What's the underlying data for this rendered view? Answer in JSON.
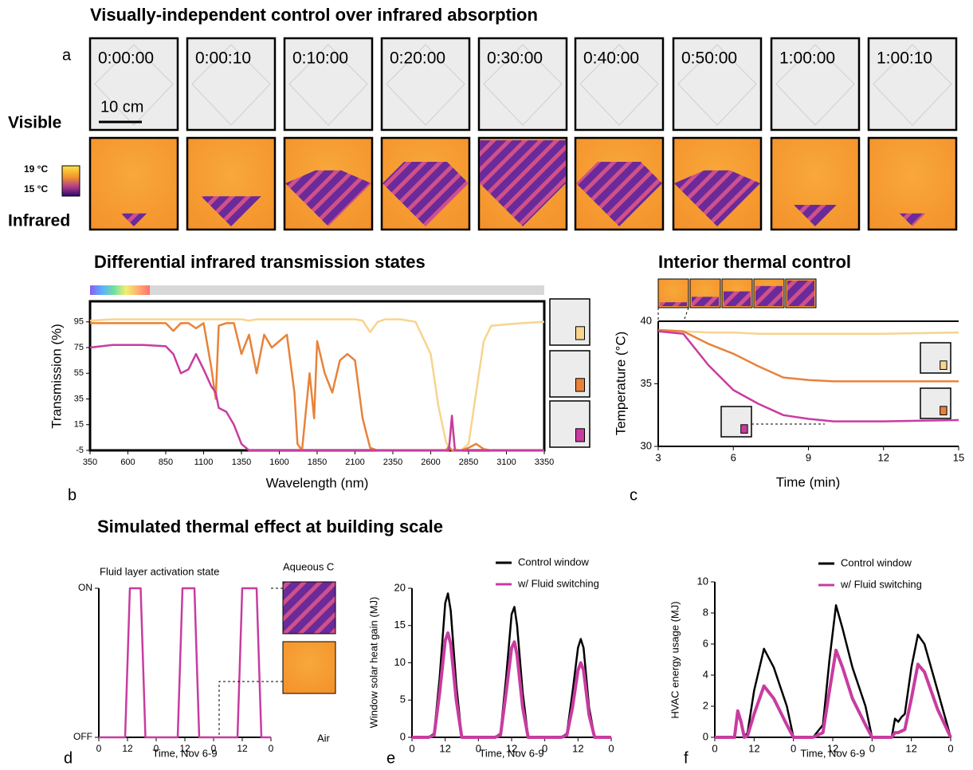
{
  "panel_a": {
    "title": "Visually-independent control over infrared absorption",
    "label": "a",
    "timestamps": [
      "0:00:00",
      "0:00:10",
      "0:10:00",
      "0:20:00",
      "0:30:00",
      "0:40:00",
      "0:50:00",
      "1:00:00",
      "1:00:10"
    ],
    "scale_bar": "10 cm",
    "row_labels": [
      "Visible",
      "Infrared"
    ],
    "colorbar_labels": [
      "19 °C",
      "15 °C"
    ]
  },
  "section_title": "Simulated thermal effect at building scale",
  "chart_data": [
    {
      "type": "line",
      "panel_label": "b",
      "title": "Differential infrared transmission states",
      "x_label": "Wavelength (nm)",
      "y_label": "Transmission (%)",
      "xlim": [
        350,
        3350
      ],
      "xticks": [
        350,
        600,
        850,
        1100,
        1350,
        1600,
        1850,
        2100,
        2350,
        2600,
        2850,
        3100,
        3350
      ],
      "ylim": [
        -5,
        111
      ],
      "yticks": [
        -5,
        15,
        35,
        55,
        75,
        95
      ],
      "x": [
        350,
        500,
        700,
        850,
        900,
        950,
        1000,
        1050,
        1100,
        1150,
        1180,
        1200,
        1250,
        1300,
        1350,
        1400,
        1450,
        1500,
        1550,
        1600,
        1650,
        1700,
        1720,
        1750,
        1800,
        1830,
        1850,
        1900,
        1950,
        2000,
        2050,
        2100,
        2150,
        2200,
        2250,
        2300,
        2400,
        2500,
        2600,
        2650,
        2700,
        2720,
        2740,
        2760,
        2800,
        2850,
        2900,
        2950,
        3000,
        3100,
        3200,
        3350
      ],
      "series": [
        {
          "color": "#f8d48e",
          "values": [
            96,
            97,
            97,
            97,
            97,
            97,
            97,
            97,
            97,
            97,
            97,
            97,
            97,
            97,
            97,
            96,
            97,
            97,
            97,
            97,
            97,
            97,
            97,
            97,
            97,
            97,
            97,
            97,
            97,
            97,
            97,
            97,
            96,
            87,
            95,
            97,
            97,
            95,
            70,
            30,
            2,
            -3,
            15,
            -4,
            -5,
            0,
            40,
            80,
            92,
            93,
            94,
            95
          ]
        },
        {
          "color": "#e8823a",
          "values": [
            94,
            94,
            94,
            94,
            88,
            94,
            94,
            90,
            94,
            60,
            35,
            92,
            94,
            94,
            70,
            85,
            55,
            85,
            75,
            80,
            85,
            40,
            0,
            -5,
            55,
            20,
            80,
            55,
            40,
            65,
            70,
            65,
            20,
            -3,
            -5,
            -5,
            -5,
            -5,
            -5,
            -5,
            -5,
            -2,
            -5,
            -5,
            -5,
            -3,
            0,
            -4,
            -5,
            -5,
            -5,
            -5
          ]
        },
        {
          "color": "#c83ca0",
          "values": [
            75,
            77,
            77,
            76,
            70,
            55,
            58,
            70,
            58,
            45,
            40,
            28,
            25,
            15,
            0,
            -5,
            -5,
            -5,
            -5,
            -5,
            -5,
            -5,
            -5,
            -5,
            -5,
            -5,
            -5,
            -5,
            -5,
            -5,
            -5,
            -5,
            -5,
            -5,
            -5,
            -5,
            -5,
            -5,
            -5,
            -5,
            -5,
            -5,
            22,
            -5,
            -5,
            -5,
            -5,
            -5,
            -5,
            -5,
            -5,
            -5
          ]
        }
      ]
    },
    {
      "type": "line",
      "panel_label": "c",
      "title": "Interior thermal control",
      "x_label": "Time (min)",
      "y_label": "Temperature (°C)",
      "xlim": [
        3,
        15
      ],
      "xticks": [
        3,
        6,
        9,
        12,
        15
      ],
      "ylim": [
        30,
        40
      ],
      "yticks": [
        30,
        35,
        40
      ],
      "x": [
        3,
        4,
        5,
        6,
        7,
        8,
        9,
        10,
        12,
        15
      ],
      "series": [
        {
          "color": "#f8d48e",
          "values": [
            39.3,
            39.2,
            39.1,
            39.1,
            39.0,
            39.0,
            39.0,
            39.0,
            39.0,
            39.1
          ]
        },
        {
          "color": "#e8823a",
          "values": [
            39.3,
            39.2,
            38.2,
            37.4,
            36.4,
            35.5,
            35.3,
            35.2,
            35.2,
            35.2
          ]
        },
        {
          "color": "#c83ca0",
          "values": [
            39.2,
            39.0,
            36.5,
            34.5,
            33.4,
            32.5,
            32.2,
            32.0,
            32.0,
            32.1
          ]
        }
      ]
    },
    {
      "type": "line",
      "panel_label": "d",
      "title": "Fluid layer activation state",
      "x_label": "Time, Nov 6-9",
      "annotations": [
        "Aqueous C",
        "Air"
      ],
      "xlim": [
        0,
        72
      ],
      "xticks": [
        0,
        12,
        {
          "value": 24,
          "label": "0"
        },
        {
          "value": 36,
          "label": "12"
        },
        {
          "value": 48,
          "label": "0"
        },
        {
          "value": 60,
          "label": "12"
        },
        {
          "value": 72,
          "label": "0"
        }
      ],
      "ylim": [
        0,
        1
      ],
      "yticks": [
        {
          "value": 0,
          "label": "OFF"
        },
        {
          "value": 1,
          "label": "ON"
        }
      ],
      "x": [
        0,
        11,
        13,
        17.5,
        19.5,
        33,
        35,
        40,
        42,
        58,
        60,
        66,
        68,
        72
      ],
      "series": [
        {
          "color": "#c83ca0",
          "values": [
            0,
            0,
            1,
            1,
            0,
            0,
            1,
            1,
            0,
            0,
            1,
            1,
            0,
            0
          ]
        }
      ]
    },
    {
      "type": "line",
      "panel_label": "e",
      "x_label": "Time, Nov 6-9",
      "y_label": "Window solar heat gain (MJ)",
      "legend": "upper right",
      "xlim": [
        0,
        72
      ],
      "xticks": [
        0,
        12,
        {
          "value": 24,
          "label": "0"
        },
        {
          "value": 36,
          "label": "12"
        },
        {
          "value": 48,
          "label": "0"
        },
        {
          "value": 60,
          "label": "12"
        },
        {
          "value": 72,
          "label": "0"
        }
      ],
      "ylim": [
        0,
        20
      ],
      "yticks": [
        0,
        5,
        10,
        15,
        20
      ],
      "x": [
        0,
        6,
        8,
        10,
        12,
        13,
        14,
        16,
        18,
        24,
        30,
        32,
        34,
        36,
        37,
        38,
        40,
        42,
        48,
        54,
        56,
        58,
        60,
        61,
        62,
        64,
        66,
        72
      ],
      "series": [
        {
          "name": "Control window",
          "color": "#000000",
          "values": [
            0,
            0,
            0.5,
            8,
            18,
            19.3,
            17,
            7,
            0,
            0,
            0,
            0.5,
            8,
            16.5,
            17.5,
            15,
            6,
            0,
            0,
            0,
            0.5,
            6,
            12,
            13.2,
            12,
            4,
            0,
            0
          ]
        },
        {
          "name": "w/ Fluid switching",
          "color": "#c83ca0",
          "values": [
            0,
            0,
            0.3,
            6,
            13,
            14,
            12.5,
            5,
            0,
            0,
            0,
            0.3,
            6,
            12,
            12.8,
            11,
            4,
            0,
            0,
            0,
            0.3,
            4,
            9,
            10,
            9,
            3,
            0,
            0
          ]
        }
      ]
    },
    {
      "type": "line",
      "panel_label": "f",
      "x_label": "Time, Nov 6-9",
      "y_label": "HVAC energy usage (MJ)",
      "legend": "upper right",
      "xlim": [
        0,
        72
      ],
      "xticks": [
        0,
        12,
        {
          "value": 24,
          "label": "0"
        },
        {
          "value": 36,
          "label": "12"
        },
        {
          "value": 48,
          "label": "0"
        },
        {
          "value": 60,
          "label": "12"
        },
        {
          "value": 72,
          "label": "0"
        }
      ],
      "ylim": [
        0,
        10
      ],
      "yticks": [
        0,
        2,
        4,
        6,
        8,
        10
      ],
      "x": [
        0,
        6,
        7,
        8,
        9,
        10,
        12,
        15,
        18,
        22,
        24,
        30,
        33,
        35,
        37,
        39,
        42,
        46,
        48,
        54,
        55,
        56,
        57,
        58,
        60,
        62,
        64,
        68,
        72
      ],
      "series": [
        {
          "name": "Control window",
          "color": "#000000",
          "values": [
            0,
            0,
            1.5,
            1,
            0,
            0.3,
            3,
            5.7,
            4.5,
            2,
            0,
            0,
            0.8,
            5,
            8.5,
            7,
            4.5,
            2,
            0,
            0,
            1.2,
            1,
            1.3,
            1.5,
            4.5,
            6.6,
            6,
            3,
            0
          ]
        },
        {
          "name": "w/ Fluid switching",
          "color": "#c83ca0",
          "values": [
            0,
            0,
            1.7,
            1,
            0,
            0.1,
            1.5,
            3.3,
            2.5,
            0.8,
            0,
            0,
            0.3,
            3,
            5.6,
            4.5,
            2.5,
            0.8,
            0,
            0,
            0.3,
            0.3,
            0.4,
            0.5,
            2.5,
            4.7,
            4.2,
            1.8,
            0
          ]
        }
      ]
    }
  ]
}
